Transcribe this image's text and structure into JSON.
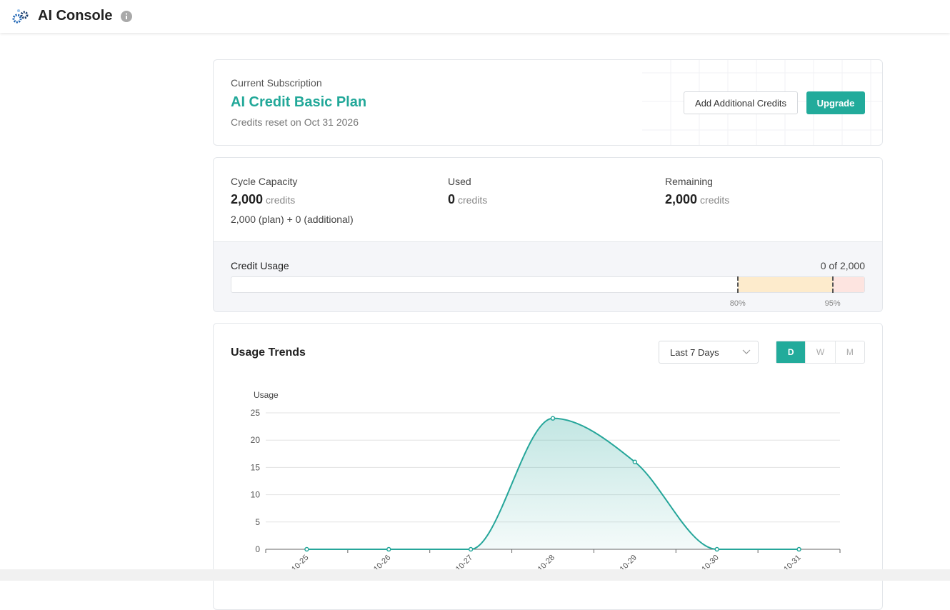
{
  "header": {
    "title": "AI Console"
  },
  "subscription": {
    "label": "Current Subscription",
    "plan": "AI Credit Basic Plan",
    "reset": "Credits reset on Oct 31 2026",
    "buttons": [
      "Add Additional Credits",
      "Upgrade"
    ]
  },
  "capacity": {
    "stats": [
      {
        "label": "Cycle Capacity",
        "value": "2,000",
        "unit": "credits",
        "detail": "2,000 (plan) + 0 (additional)"
      },
      {
        "label": "Used",
        "value": "0",
        "unit": "credits"
      },
      {
        "label": "Remaining",
        "value": "2,000",
        "unit": "credits"
      }
    ],
    "usage": {
      "label": "Credit Usage",
      "summary": "0 of 2,000",
      "thresholds": [
        {
          "value": 80,
          "label": "80%"
        },
        {
          "value": 95,
          "label": "95%"
        }
      ]
    }
  },
  "trends": {
    "title": "Usage Trends",
    "range": "Last 7 Days",
    "periods": [
      "D",
      "W",
      "M"
    ],
    "chart_data": {
      "type": "area",
      "y_label": "Usage",
      "categories": [
        "10-25",
        "10-26",
        "10-27",
        "10-28",
        "10-29",
        "10-30",
        "10-31"
      ],
      "series": [
        {
          "color": "#26a69a",
          "values": [
            0,
            0,
            0,
            24,
            16,
            0,
            0
          ]
        }
      ],
      "ylim": [
        0,
        25
      ],
      "yticks": [
        0,
        5,
        10,
        15,
        20,
        25
      ],
      "grid": true
    }
  }
}
